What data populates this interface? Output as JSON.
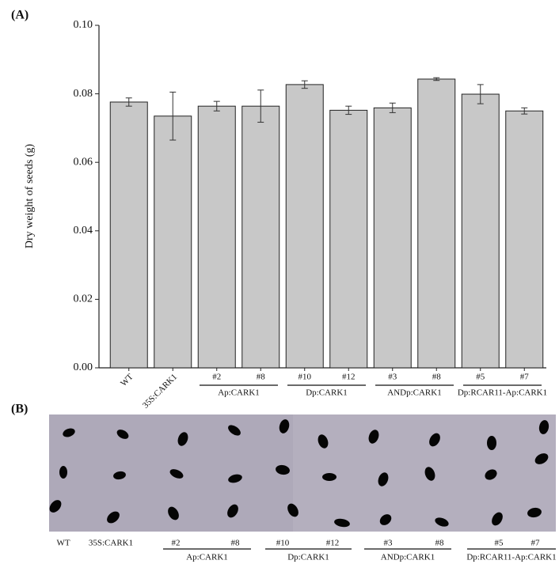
{
  "chart_data": {
    "type": "bar",
    "panel_label": "(A)",
    "photo_label": "(B)",
    "y_label": "Dry weight of seeds (g)",
    "categories": [
      "WT",
      "35S:CARK1",
      "#2",
      "#8",
      "#10",
      "#12",
      "#3",
      "#8",
      "#5",
      "#7"
    ],
    "groups": [
      "Ap:CARK1",
      "Dp:CARK1",
      "ANDp:CARK1",
      "Dp:RCAR11-Ap:CARK1"
    ],
    "values": [
      0.0776,
      0.0735,
      0.0764,
      0.0764,
      0.0827,
      0.0752,
      0.0759,
      0.0843,
      0.0799,
      0.075
    ],
    "errors": [
      0.0012,
      0.007,
      0.0014,
      0.0047,
      0.0011,
      0.0012,
      0.0014,
      0.0004,
      0.0028,
      0.0009
    ],
    "color": "#c8c8c8",
    "ylim": [
      0,
      0.1
    ],
    "yticks": [
      {
        "value": 0,
        "label": "0.00"
      },
      0.02,
      0.04,
      0.06,
      0.08,
      {
        "value": 0.1,
        "label": "0.10"
      }
    ]
  }
}
